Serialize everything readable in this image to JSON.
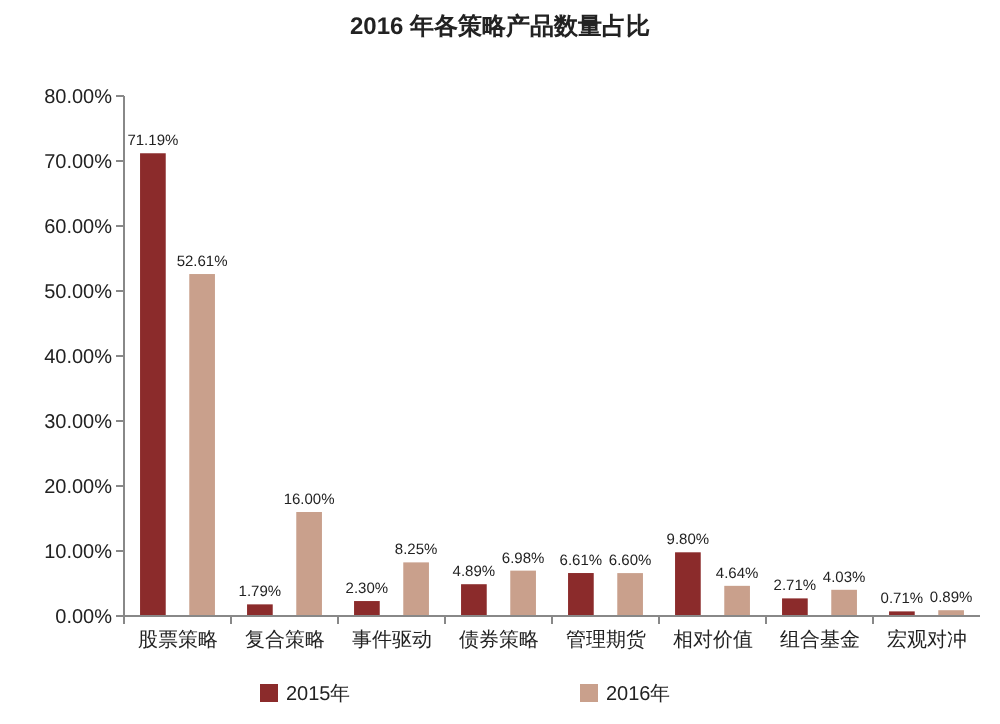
{
  "chart_data": {
    "type": "bar",
    "title": "2016 年各策略产品数量占比",
    "categories": [
      "股票策略",
      "复合策略",
      "事件驱动",
      "债券策略",
      "管理期货",
      "相对价值",
      "组合基金",
      "宏观对冲"
    ],
    "series": [
      {
        "name": "2015年",
        "color": "#8b2b2b",
        "values": [
          71.19,
          1.79,
          2.3,
          4.89,
          6.61,
          9.8,
          2.71,
          0.71
        ],
        "value_labels": [
          "71.19%",
          "1.79%",
          "2.30%",
          "4.89%",
          "6.61%",
          "9.80%",
          "2.71%",
          "0.71%"
        ]
      },
      {
        "name": "2016年",
        "color": "#c9a08c",
        "values": [
          52.61,
          16.0,
          8.25,
          6.98,
          6.6,
          4.64,
          4.03,
          0.89
        ],
        "value_labels": [
          "52.61%",
          "16.00%",
          "8.25%",
          "6.98%",
          "6.60%",
          "4.64%",
          "4.03%",
          "0.89%"
        ]
      }
    ],
    "ylim": [
      0,
      80
    ],
    "yticks": [
      {
        "value": 0,
        "label": "0.00%"
      },
      {
        "value": 10,
        "label": "10.00%"
      },
      {
        "value": 20,
        "label": "20.00%"
      },
      {
        "value": 30,
        "label": "30.00%"
      },
      {
        "value": 40,
        "label": "40.00%"
      },
      {
        "value": 50,
        "label": "50.00%"
      },
      {
        "value": 60,
        "label": "60.00%"
      },
      {
        "value": 70,
        "label": "70.00%"
      },
      {
        "value": 80,
        "label": "80.00%"
      }
    ],
    "legend": "bottom"
  }
}
